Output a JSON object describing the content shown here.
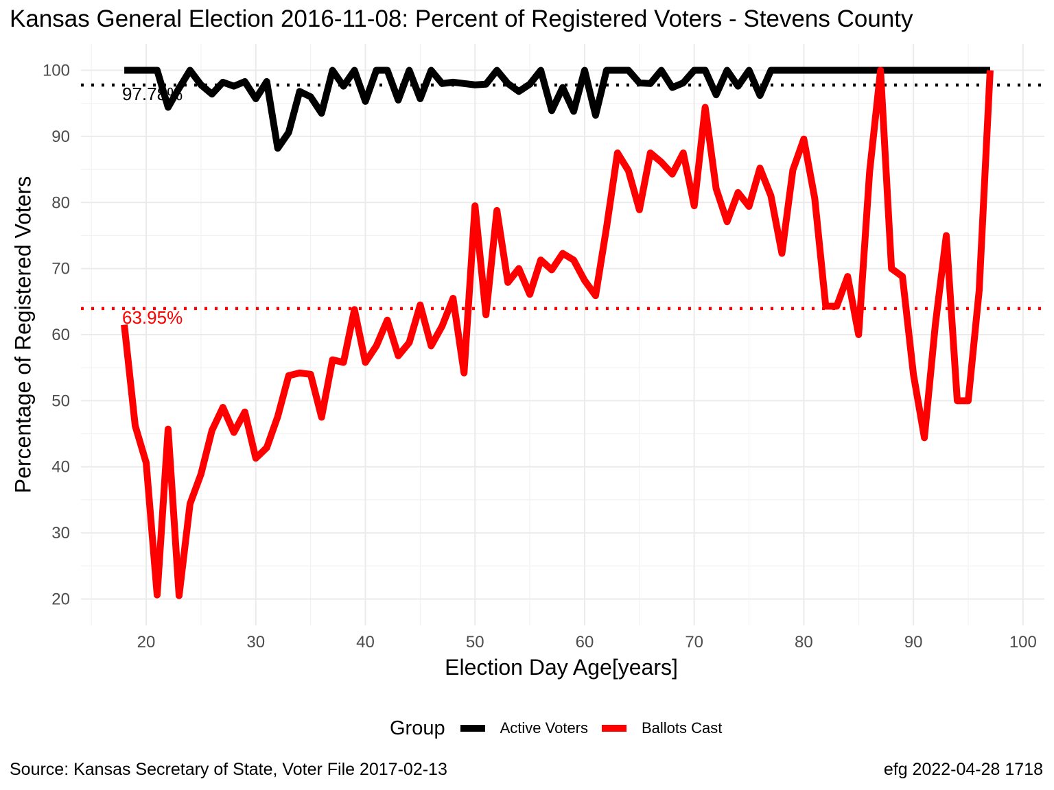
{
  "title": "Kansas General Election 2016-11-08:  Percent of Registered Voters - Stevens County",
  "xlabel": "Election Day Age[years]",
  "ylabel": "Percentage of Registered Voters",
  "caption_left": "Source:  Kansas Secretary of State, Voter File  2017-02-13",
  "caption_right": "efg 2022-04-28 1718",
  "legend": {
    "title": "Group",
    "items": [
      {
        "label": "Active Voters",
        "color": "#000000"
      },
      {
        "label": "Ballots Cast",
        "color": "#ff0000"
      }
    ]
  },
  "chart_data": {
    "type": "line",
    "xlim": [
      18,
      97
    ],
    "ylim": [
      20,
      100
    ],
    "x_ticks": [
      20,
      30,
      40,
      50,
      60,
      70,
      80,
      90,
      100
    ],
    "y_ticks": [
      20,
      30,
      40,
      50,
      60,
      70,
      80,
      90,
      100
    ],
    "grid": true,
    "legend_position": "bottom",
    "x": [
      18,
      19,
      20,
      21,
      22,
      23,
      24,
      25,
      26,
      27,
      28,
      29,
      30,
      31,
      32,
      33,
      34,
      35,
      36,
      37,
      38,
      39,
      40,
      41,
      42,
      43,
      44,
      45,
      46,
      47,
      48,
      49,
      50,
      51,
      52,
      53,
      54,
      55,
      56,
      57,
      58,
      59,
      60,
      61,
      62,
      63,
      64,
      65,
      66,
      67,
      68,
      69,
      70,
      71,
      72,
      73,
      74,
      75,
      76,
      77,
      78,
      79,
      80,
      81,
      82,
      83,
      84,
      85,
      86,
      87,
      88,
      89,
      90,
      91,
      92,
      93,
      94,
      95,
      96,
      97
    ],
    "series": [
      {
        "name": "Active Voters",
        "color": "#000000",
        "values": [
          100,
          100,
          100,
          100,
          94.4,
          97.3,
          100,
          97.8,
          96.4,
          98.2,
          97.6,
          98.3,
          95.7,
          98.3,
          88.2,
          90.6,
          96.8,
          96.0,
          93.5,
          100,
          97.6,
          100,
          95.3,
          100,
          100,
          95.5,
          100,
          95.7,
          100,
          98.0,
          98.2,
          98.0,
          97.8,
          97.9,
          100,
          98.0,
          96.8,
          97.9,
          100,
          93.9,
          97.4,
          93.8,
          100,
          93.2,
          100,
          100,
          100,
          98.1,
          98.0,
          100,
          97.4,
          98.1,
          100,
          100,
          96.3,
          100,
          97.6,
          100,
          96.2,
          100,
          100,
          100,
          100,
          100,
          100,
          100,
          100,
          100,
          100,
          100,
          100,
          100,
          100,
          100,
          100,
          100,
          100,
          100,
          100,
          100
        ]
      },
      {
        "name": "Ballots Cast",
        "color": "#ff0000",
        "values": [
          61.5,
          46.2,
          40.6,
          20.6,
          45.7,
          20.5,
          34.4,
          38.9,
          45.5,
          49.0,
          45.2,
          48.3,
          41.3,
          42.9,
          47.6,
          53.8,
          54.2,
          54.0,
          47.5,
          56.2,
          55.8,
          63.8,
          55.8,
          58.3,
          62.2,
          56.8,
          58.8,
          64.5,
          58.3,
          61.3,
          65.5,
          54.2,
          79.5,
          63.0,
          78.8,
          67.9,
          70.0,
          66.1,
          71.3,
          69.8,
          72.3,
          71.3,
          68.2,
          65.9,
          76.2,
          87.5,
          84.8,
          78.9,
          87.5,
          86.1,
          84.3,
          87.5,
          79.5,
          94.4,
          82.1,
          77.1,
          81.5,
          79.4,
          85.2,
          81.0,
          72.3,
          84.9,
          89.6,
          80.6,
          64.3,
          64.3,
          68.8,
          60.0,
          84.6,
          100,
          70.0,
          68.8,
          54.0,
          44.4,
          61.5,
          75.0,
          50.0,
          50.0,
          66.7,
          100
        ]
      }
    ],
    "hlines": [
      {
        "value": 97.78,
        "label": "97.78%",
        "color": "#000000"
      },
      {
        "value": 63.95,
        "label": "63.95%",
        "color": "#ff0000"
      }
    ]
  }
}
